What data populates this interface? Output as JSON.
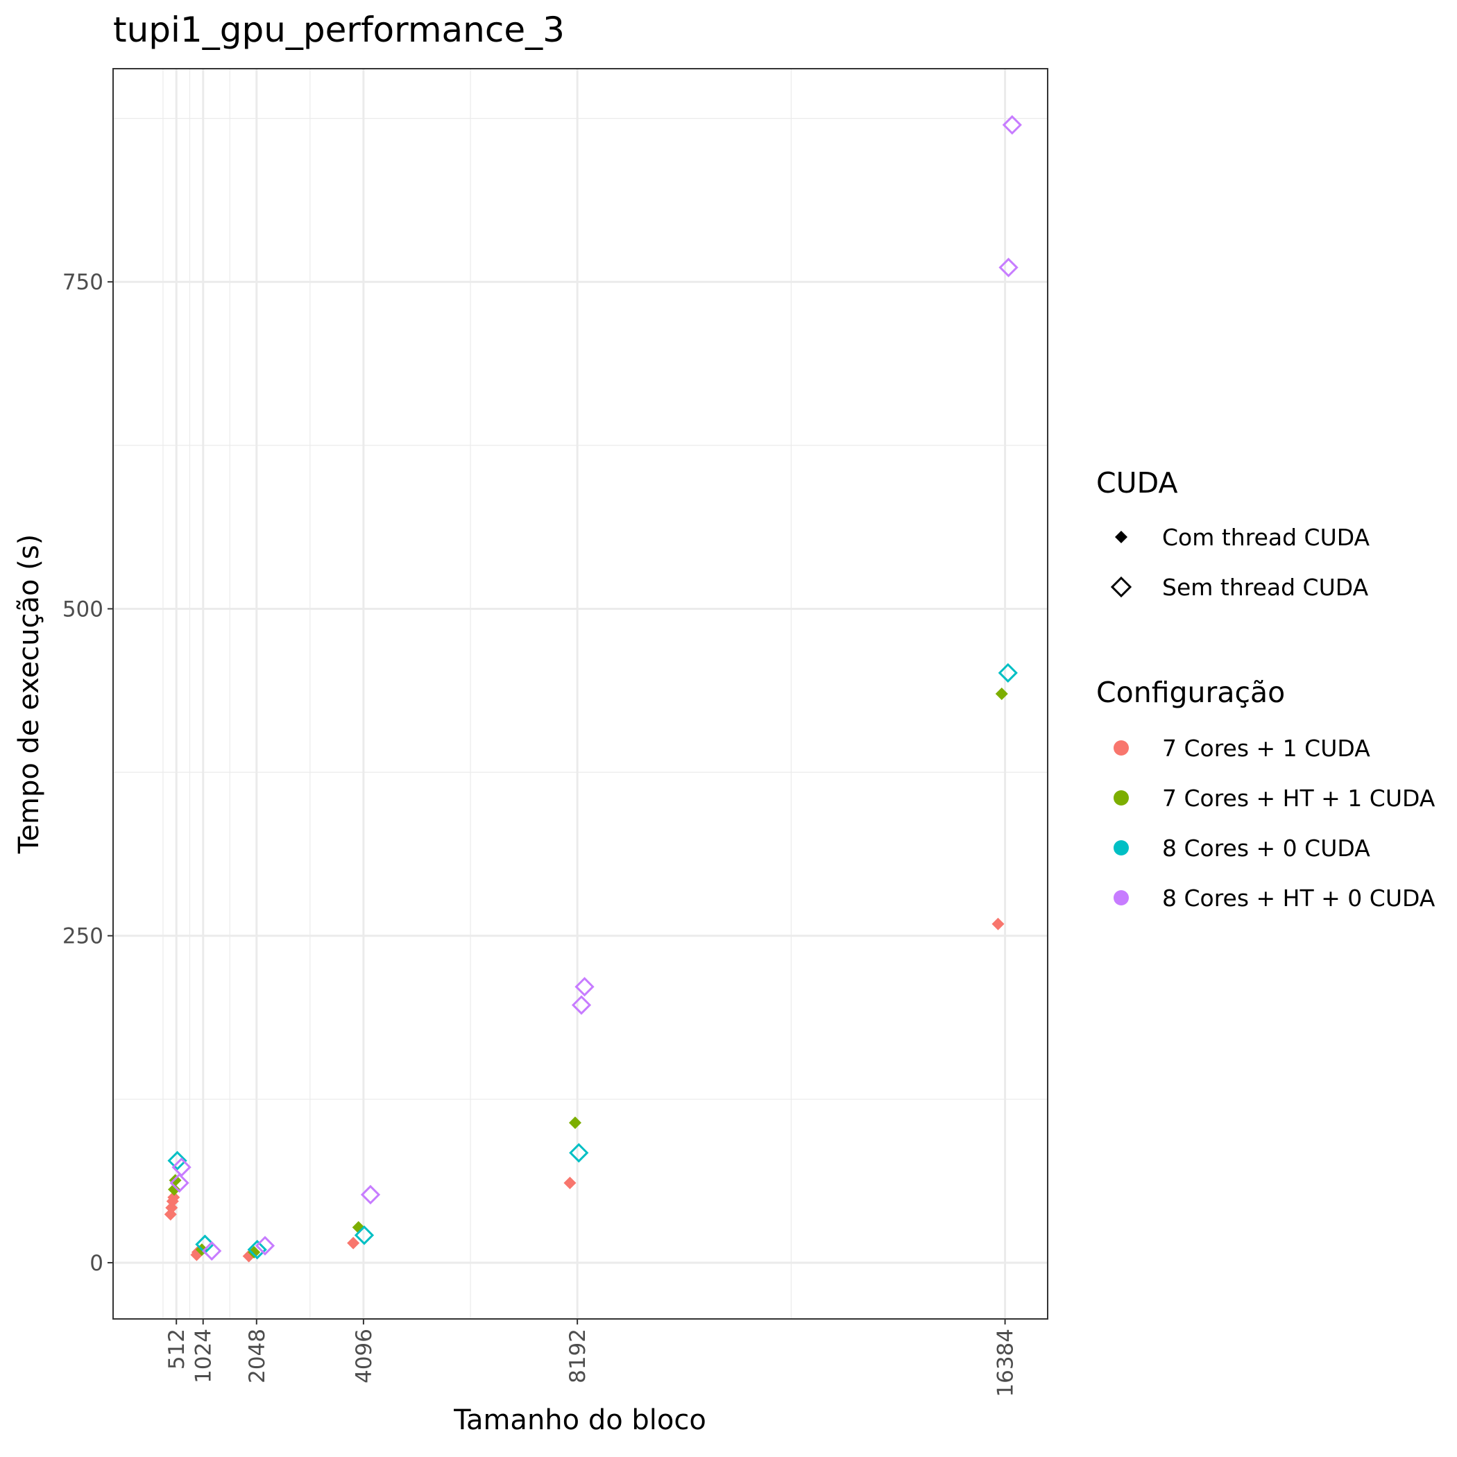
{
  "chart_data": {
    "type": "scatter",
    "title": "tupi1_gpu_performance_3",
    "xlabel": "Tamanho do bloco",
    "ylabel": "Tempo de execução (s)",
    "x_ticks": [
      512,
      1024,
      2048,
      4096,
      8192,
      16384
    ],
    "y_ticks": [
      0,
      250,
      500,
      750
    ],
    "xlim": [
      -700,
      17200
    ],
    "ylim": [
      -43,
      913
    ],
    "grid": true,
    "legend_position": "right",
    "legends": [
      {
        "title": "CUDA",
        "items": [
          {
            "label": "Com thread CUDA",
            "shape": "filled-diamond"
          },
          {
            "label": "Sem thread CUDA",
            "shape": "open-diamond"
          }
        ]
      },
      {
        "title": "Configuração",
        "items": [
          {
            "label": "7 Cores + 1 CUDA",
            "color": "#F8766D"
          },
          {
            "label": "7 Cores + HT + 1 CUDA",
            "color": "#7CAE00"
          },
          {
            "label": "8 Cores + 0 CUDA",
            "color": "#00BFC4"
          },
          {
            "label": "8 Cores + HT + 0 CUDA",
            "color": "#C77CFF"
          }
        ]
      }
    ],
    "series": [
      {
        "name": "7 Cores + 1 CUDA",
        "cuda": "Com thread CUDA",
        "color": "#F8766D",
        "points": [
          {
            "x": 400,
            "y": 37
          },
          {
            "x": 420,
            "y": 42
          },
          {
            "x": 440,
            "y": 47
          },
          {
            "x": 460,
            "y": 50
          },
          {
            "x": 900,
            "y": 6
          },
          {
            "x": 920,
            "y": 8
          },
          {
            "x": 1900,
            "y": 5
          },
          {
            "x": 3900,
            "y": 15
          },
          {
            "x": 8050,
            "y": 61
          },
          {
            "x": 16250,
            "y": 259
          }
        ]
      },
      {
        "name": "7 Cores + HT + 1 CUDA",
        "cuda": "Com thread CUDA",
        "color": "#7CAE00",
        "points": [
          {
            "x": 470,
            "y": 56
          },
          {
            "x": 490,
            "y": 63
          },
          {
            "x": 1000,
            "y": 10
          },
          {
            "x": 2000,
            "y": 8
          },
          {
            "x": 4000,
            "y": 27
          },
          {
            "x": 8150,
            "y": 107
          },
          {
            "x": 16320,
            "y": 435
          }
        ]
      },
      {
        "name": "8 Cores + 0 CUDA",
        "cuda": "Sem thread CUDA",
        "color": "#00BFC4",
        "points": [
          {
            "x": 530,
            "y": 78
          },
          {
            "x": 1060,
            "y": 14
          },
          {
            "x": 2060,
            "y": 10
          },
          {
            "x": 4110,
            "y": 21
          },
          {
            "x": 8220,
            "y": 84
          },
          {
            "x": 16440,
            "y": 451
          }
        ]
      },
      {
        "name": "8 Cores + HT + 0 CUDA",
        "cuda": "Sem thread CUDA",
        "color": "#C77CFF",
        "points": [
          {
            "x": 570,
            "y": 61
          },
          {
            "x": 610,
            "y": 73
          },
          {
            "x": 1190,
            "y": 9
          },
          {
            "x": 2210,
            "y": 13
          },
          {
            "x": 4230,
            "y": 52
          },
          {
            "x": 8270,
            "y": 197
          },
          {
            "x": 8330,
            "y": 211
          },
          {
            "x": 16450,
            "y": 761
          },
          {
            "x": 16520,
            "y": 870
          }
        ]
      }
    ]
  }
}
